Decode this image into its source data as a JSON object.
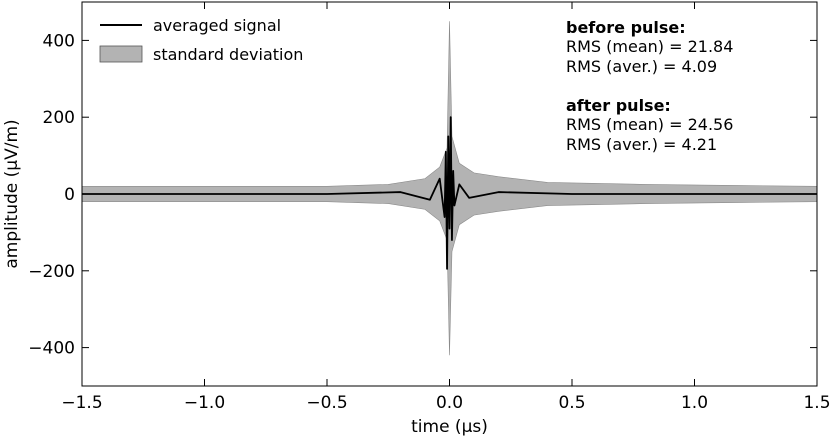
{
  "chart_data": {
    "type": "line",
    "title": "",
    "xlabel": "time (μs)",
    "ylabel": "amplitude (μV/m)",
    "xlim": [
      -1.5,
      1.5
    ],
    "ylim": [
      -500,
      500
    ],
    "xticks": [
      -1.5,
      -1.0,
      -0.5,
      0.0,
      0.5,
      1.0,
      1.5
    ],
    "xtick_labels": [
      "−1.5",
      "−1.0",
      "−0.5",
      "0.0",
      "0.5",
      "1.0",
      "1.5"
    ],
    "yticks": [
      400,
      200,
      0,
      -200,
      -400
    ],
    "ytick_labels": [
      "400",
      "200",
      "0",
      "−200",
      "−400"
    ],
    "grid": false,
    "legend": {
      "position": "top-left",
      "entries": [
        "averaged signal",
        "standard deviation"
      ]
    },
    "series": [
      {
        "name": "averaged signal",
        "kind": "line",
        "color": "#000000",
        "x": [
          -1.5,
          -1.0,
          -0.5,
          -0.2,
          -0.08,
          -0.04,
          -0.02,
          -0.015,
          -0.01,
          -0.005,
          0.0,
          0.005,
          0.01,
          0.015,
          0.02,
          0.04,
          0.08,
          0.2,
          0.5,
          1.0,
          1.5
        ],
        "values": [
          0,
          0,
          0,
          5,
          -15,
          40,
          -60,
          110,
          -195,
          150,
          -90,
          200,
          -120,
          60,
          -30,
          25,
          -10,
          5,
          0,
          0,
          0
        ]
      },
      {
        "name": "standard deviation",
        "kind": "band",
        "color": "#b3b3b3",
        "x": [
          -1.5,
          -1.0,
          -0.5,
          -0.25,
          -0.1,
          -0.04,
          -0.01,
          0.0,
          0.01,
          0.04,
          0.1,
          0.2,
          0.4,
          0.8,
          1.2,
          1.5
        ],
        "upper": [
          20,
          20,
          20,
          25,
          40,
          70,
          120,
          450,
          150,
          80,
          55,
          45,
          30,
          25,
          22,
          20
        ],
        "lower": [
          -20,
          -20,
          -20,
          -25,
          -40,
          -70,
          -120,
          -420,
          -150,
          -80,
          -55,
          -45,
          -30,
          -25,
          -22,
          -20
        ]
      }
    ],
    "annotations": {
      "before_heading": "before pulse:",
      "before_lines": [
        "RMS (mean) = 21.84",
        "RMS (aver.) = 4.09"
      ],
      "after_heading": "after pulse:",
      "after_lines": [
        "RMS (mean) = 24.56",
        "RMS (aver.) = 4.21"
      ]
    }
  }
}
